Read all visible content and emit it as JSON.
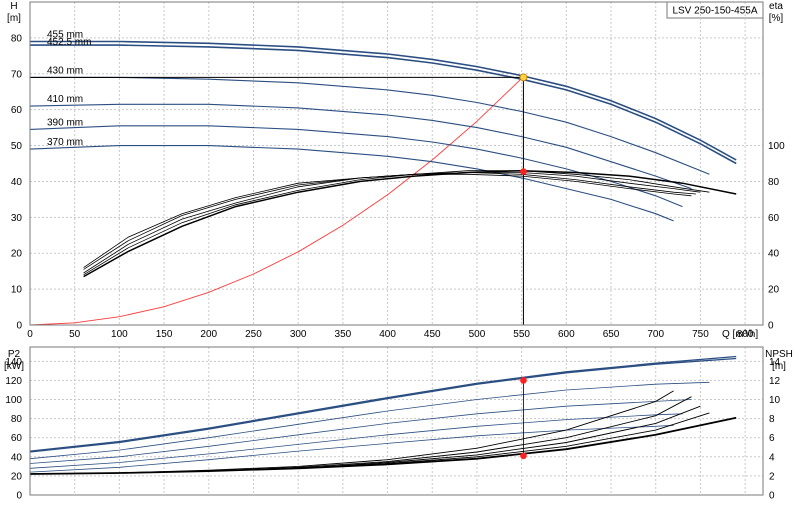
{
  "chart_title": "LSV 250-150-455A",
  "chart_data": [
    {
      "name": "performance",
      "type": "line",
      "x_unit_label": "Q [m³/h]",
      "x_ticks": [
        0,
        50,
        100,
        150,
        200,
        250,
        300,
        350,
        400,
        450,
        500,
        550,
        600,
        650,
        700,
        750,
        800
      ],
      "xlim": [
        0,
        820
      ],
      "left_axis": {
        "label": "H",
        "unit": "[m]",
        "ticks": [
          0,
          10,
          20,
          30,
          40,
          50,
          60,
          70,
          80
        ],
        "lim": [
          0,
          90
        ]
      },
      "right_axis": {
        "label": "eta",
        "unit": "[%]",
        "ticks": [
          0,
          20,
          40,
          60,
          80,
          100
        ]
      },
      "grid": true,
      "head_series": [
        {
          "name": "455 mm",
          "x": [
            0,
            100,
            200,
            300,
            400,
            450,
            500,
            550,
            600,
            650,
            700,
            750,
            790
          ],
          "y": [
            79,
            79,
            78.5,
            77.5,
            75.5,
            74,
            72,
            69.5,
            66.5,
            62.5,
            57.5,
            51.5,
            46
          ]
        },
        {
          "name": "452.5 mm",
          "x": [
            0,
            100,
            200,
            300,
            400,
            450,
            500,
            550,
            600,
            650,
            700,
            750,
            790
          ],
          "y": [
            78,
            78,
            77.5,
            76.5,
            74.5,
            73,
            71,
            68.5,
            65.5,
            61.5,
            56.5,
            50.5,
            45
          ]
        },
        {
          "name": "430 mm",
          "x": [
            0,
            100,
            200,
            300,
            400,
            450,
            500,
            550,
            600,
            650,
            700,
            760
          ],
          "y": [
            69,
            69,
            68.5,
            67.5,
            65.5,
            64,
            62,
            59.5,
            56.5,
            52.5,
            48,
            42
          ]
        },
        {
          "name": "410 mm",
          "x": [
            0,
            100,
            200,
            300,
            400,
            450,
            500,
            550,
            600,
            650,
            700,
            740
          ],
          "y": [
            61,
            61.5,
            61.5,
            60.5,
            58.5,
            57,
            55,
            52.5,
            49.5,
            45.5,
            41.5,
            38
          ]
        },
        {
          "name": "390 mm",
          "x": [
            0,
            100,
            200,
            300,
            400,
            450,
            500,
            550,
            600,
            650,
            700,
            730
          ],
          "y": [
            54.5,
            55.5,
            55.5,
            54.5,
            52.5,
            51,
            49,
            46.5,
            43.5,
            40,
            36,
            33
          ]
        },
        {
          "name": "370 mm",
          "x": [
            0,
            100,
            200,
            300,
            400,
            450,
            500,
            550,
            600,
            650,
            700,
            720
          ],
          "y": [
            49,
            50,
            50,
            49,
            47,
            45.5,
            43.5,
            41,
            38,
            35,
            31,
            29
          ]
        }
      ],
      "efficiency_series": [
        {
          "name": "",
          "x": [
            60,
            110,
            170,
            230,
            300,
            370,
            430,
            490,
            550,
            610,
            670,
            730,
            790
          ],
          "y": [
            27,
            41,
            55,
            66,
            74,
            80,
            83,
            85,
            86,
            85,
            83,
            79,
            73
          ]
        },
        {
          "name": "",
          "x": [
            60,
            110,
            170,
            230,
            300,
            370,
            430,
            490,
            550,
            610,
            670,
            720,
            760
          ],
          "y": [
            28,
            43,
            57,
            67,
            75,
            81,
            84,
            86,
            86,
            84,
            81,
            77,
            74
          ]
        },
        {
          "name": "",
          "x": [
            60,
            110,
            170,
            230,
            300,
            370,
            430,
            490,
            550,
            610,
            670,
            720,
            750
          ],
          "y": [
            29,
            45,
            59,
            68,
            77,
            82,
            84,
            85,
            85,
            83,
            79,
            76,
            74
          ]
        },
        {
          "name": "",
          "x": [
            60,
            110,
            170,
            230,
            300,
            370,
            430,
            490,
            550,
            610,
            670,
            720,
            745
          ],
          "y": [
            31,
            47,
            61,
            70,
            78,
            82,
            84,
            85,
            84,
            81,
            77,
            74,
            73
          ]
        },
        {
          "name": "",
          "x": [
            60,
            110,
            170,
            230,
            300,
            370,
            430,
            490,
            550,
            610,
            670,
            720,
            740
          ],
          "y": [
            32,
            49,
            62,
            71,
            79,
            82,
            84,
            84,
            83,
            80,
            76,
            73,
            72
          ]
        }
      ],
      "system_curve": {
        "x": [
          0,
          50,
          100,
          150,
          200,
          250,
          300,
          350,
          400,
          450,
          500,
          550
        ],
        "y": [
          0,
          0.6,
          2.3,
          5.1,
          9.1,
          14.2,
          20.4,
          27.8,
          36.3,
          46,
          56.8,
          68.7
        ]
      },
      "duty_point": {
        "x": 552,
        "y": 69
      },
      "efficiency_point": {
        "x": 552,
        "y": 85.5
      }
    },
    {
      "name": "power-npsh",
      "type": "line",
      "xlim": [
        0,
        820
      ],
      "left_axis": {
        "label": "P2",
        "unit": "[kW]",
        "ticks": [
          0,
          20,
          40,
          60,
          80,
          100,
          120,
          140
        ],
        "lim": [
          0,
          155
        ]
      },
      "right_axis": {
        "label": "NPSH",
        "unit": "[m]",
        "ticks": [
          0,
          2,
          4,
          6,
          8,
          10,
          12,
          14
        ]
      },
      "grid": true,
      "power_series": [
        {
          "name": "",
          "x": [
            0,
            100,
            200,
            300,
            400,
            500,
            600,
            700,
            790
          ],
          "y": [
            46,
            56,
            70,
            86,
            102,
            117,
            129,
            138,
            145
          ]
        },
        {
          "name": "",
          "x": [
            0,
            100,
            200,
            300,
            400,
            500,
            600,
            700,
            790
          ],
          "y": [
            45,
            55,
            69,
            85,
            101,
            116,
            128,
            137,
            143
          ]
        },
        {
          "name": "",
          "x": [
            0,
            100,
            200,
            300,
            400,
            500,
            600,
            700,
            760
          ],
          "y": [
            38,
            47,
            60,
            74,
            88,
            100,
            110,
            116,
            118
          ]
        },
        {
          "name": "",
          "x": [
            0,
            100,
            200,
            300,
            400,
            500,
            600,
            700,
            740
          ],
          "y": [
            33,
            40,
            51,
            63,
            75,
            85,
            93,
            98,
            100
          ]
        },
        {
          "name": "",
          "x": [
            0,
            100,
            200,
            300,
            400,
            500,
            600,
            700,
            730
          ],
          "y": [
            28,
            34,
            43,
            53,
            63,
            72,
            79,
            84,
            85
          ]
        },
        {
          "name": "",
          "x": [
            0,
            100,
            200,
            300,
            400,
            500,
            600,
            700,
            720
          ],
          "y": [
            24,
            29,
            37,
            46,
            54,
            62,
            68,
            72,
            73
          ]
        }
      ],
      "npsh_series": [
        {
          "name": "",
          "x": [
            0,
            100,
            200,
            300,
            400,
            500,
            600,
            700,
            790
          ],
          "y": [
            2.2,
            2.3,
            2.5,
            2.8,
            3.2,
            3.8,
            4.8,
            6.3,
            8.1
          ]
        },
        {
          "name": "",
          "x": [
            0,
            100,
            200,
            300,
            400,
            500,
            600,
            700,
            760
          ],
          "y": [
            2.2,
            2.3,
            2.5,
            2.8,
            3.3,
            4.0,
            5.1,
            6.8,
            8.6
          ]
        },
        {
          "name": "",
          "x": [
            0,
            100,
            200,
            300,
            400,
            500,
            600,
            700,
            750
          ],
          "y": [
            2.2,
            2.3,
            2.5,
            2.8,
            3.4,
            4.2,
            5.5,
            7.5,
            9.3
          ]
        },
        {
          "name": "",
          "x": [
            0,
            100,
            200,
            300,
            400,
            500,
            600,
            700,
            740
          ],
          "y": [
            2.2,
            2.3,
            2.5,
            2.9,
            3.5,
            4.5,
            6.0,
            8.3,
            10.3
          ]
        },
        {
          "name": "",
          "x": [
            0,
            100,
            200,
            300,
            400,
            500,
            600,
            700,
            720
          ],
          "y": [
            2.2,
            2.3,
            2.6,
            3.0,
            3.7,
            4.9,
            6.8,
            9.8,
            10.9
          ]
        }
      ],
      "power_point": {
        "x": 552,
        "y": 120
      },
      "npsh_point": {
        "x": 552,
        "y": 4.1
      }
    }
  ]
}
